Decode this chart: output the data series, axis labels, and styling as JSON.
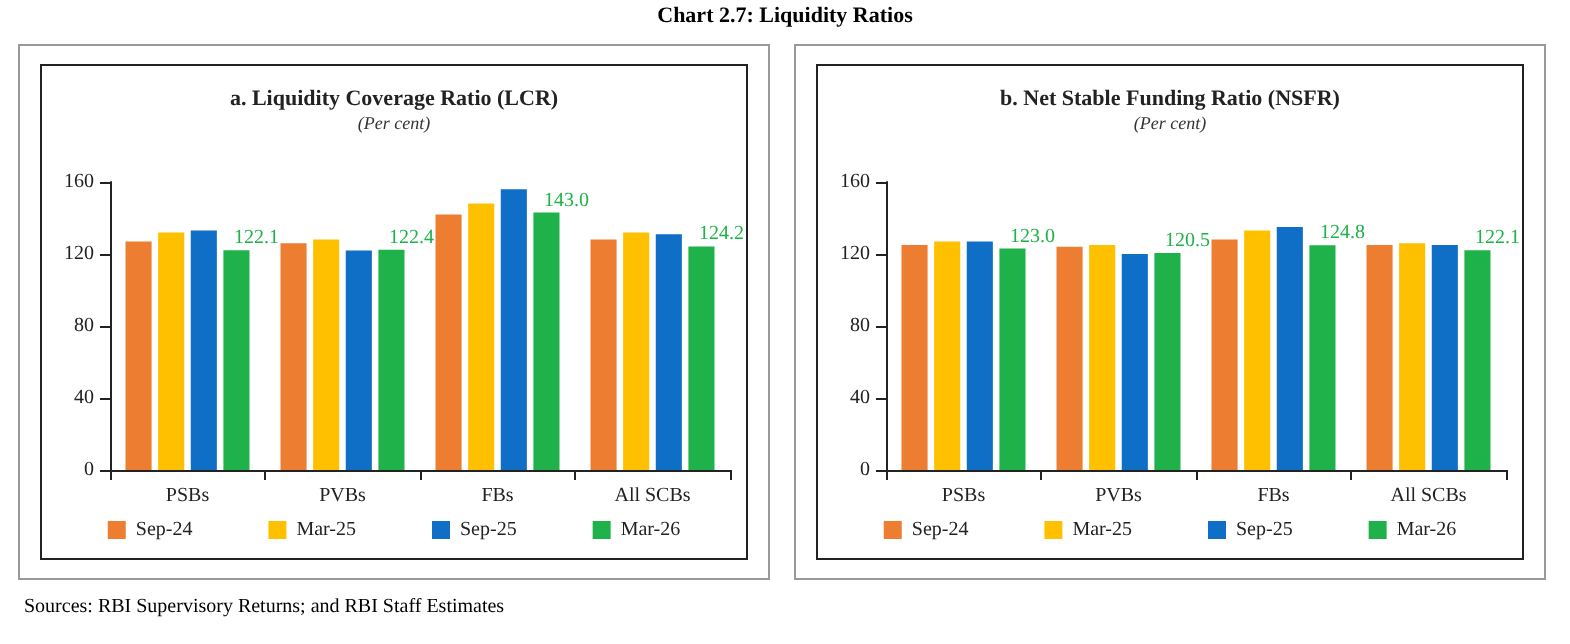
{
  "chart_data": [
    {
      "type": "bar",
      "title": "a. Liquidity Coverage Ratio (LCR)",
      "subtitle": "(Per cent)",
      "annotations": [
        "Chart 2.7: Liquidity Ratios",
        "Sources: RBI Supervisory Returns; and RBI Staff Estimates"
      ],
      "categories": [
        "PSBs",
        "PVBs",
        "FBs",
        "All SCBs"
      ],
      "ylim": [
        0,
        160
      ],
      "yticks": [
        0,
        40,
        80,
        120,
        160
      ],
      "grid": false,
      "legend": "bottom",
      "series": [
        {
          "name": "Sep-24",
          "color": "#ed7d31",
          "values": [
            127,
            126,
            142,
            128
          ]
        },
        {
          "name": "Mar-25",
          "color": "#ffc000",
          "values": [
            132,
            128,
            148,
            132
          ]
        },
        {
          "name": "Sep-25",
          "color": "#0f6fc6",
          "values": [
            133,
            122,
            156,
            131
          ]
        },
        {
          "name": "Mar-26",
          "color": "#1fb24a",
          "values": [
            122.1,
            122.4,
            143.0,
            124.2
          ],
          "value_labels": [
            "122.1",
            "122.4",
            "143.0",
            "124.2"
          ]
        }
      ]
    },
    {
      "type": "bar",
      "title": "b. Net Stable Funding Ratio (NSFR)",
      "subtitle": "(Per cent)",
      "categories": [
        "PSBs",
        "PVBs",
        "FBs",
        "All SCBs"
      ],
      "ylim": [
        0,
        160
      ],
      "yticks": [
        0,
        40,
        80,
        120,
        160
      ],
      "grid": false,
      "legend": "bottom",
      "series": [
        {
          "name": "Sep-24",
          "color": "#ed7d31",
          "values": [
            125,
            124,
            128,
            125
          ]
        },
        {
          "name": "Mar-25",
          "color": "#ffc000",
          "values": [
            127,
            125,
            133,
            126
          ]
        },
        {
          "name": "Sep-25",
          "color": "#0f6fc6",
          "values": [
            127,
            120,
            135,
            125
          ]
        },
        {
          "name": "Mar-26",
          "color": "#1fb24a",
          "values": [
            123.0,
            120.5,
            124.8,
            122.1
          ],
          "value_labels": [
            "123.0",
            "120.5",
            "124.8",
            "122.1"
          ]
        }
      ]
    }
  ]
}
